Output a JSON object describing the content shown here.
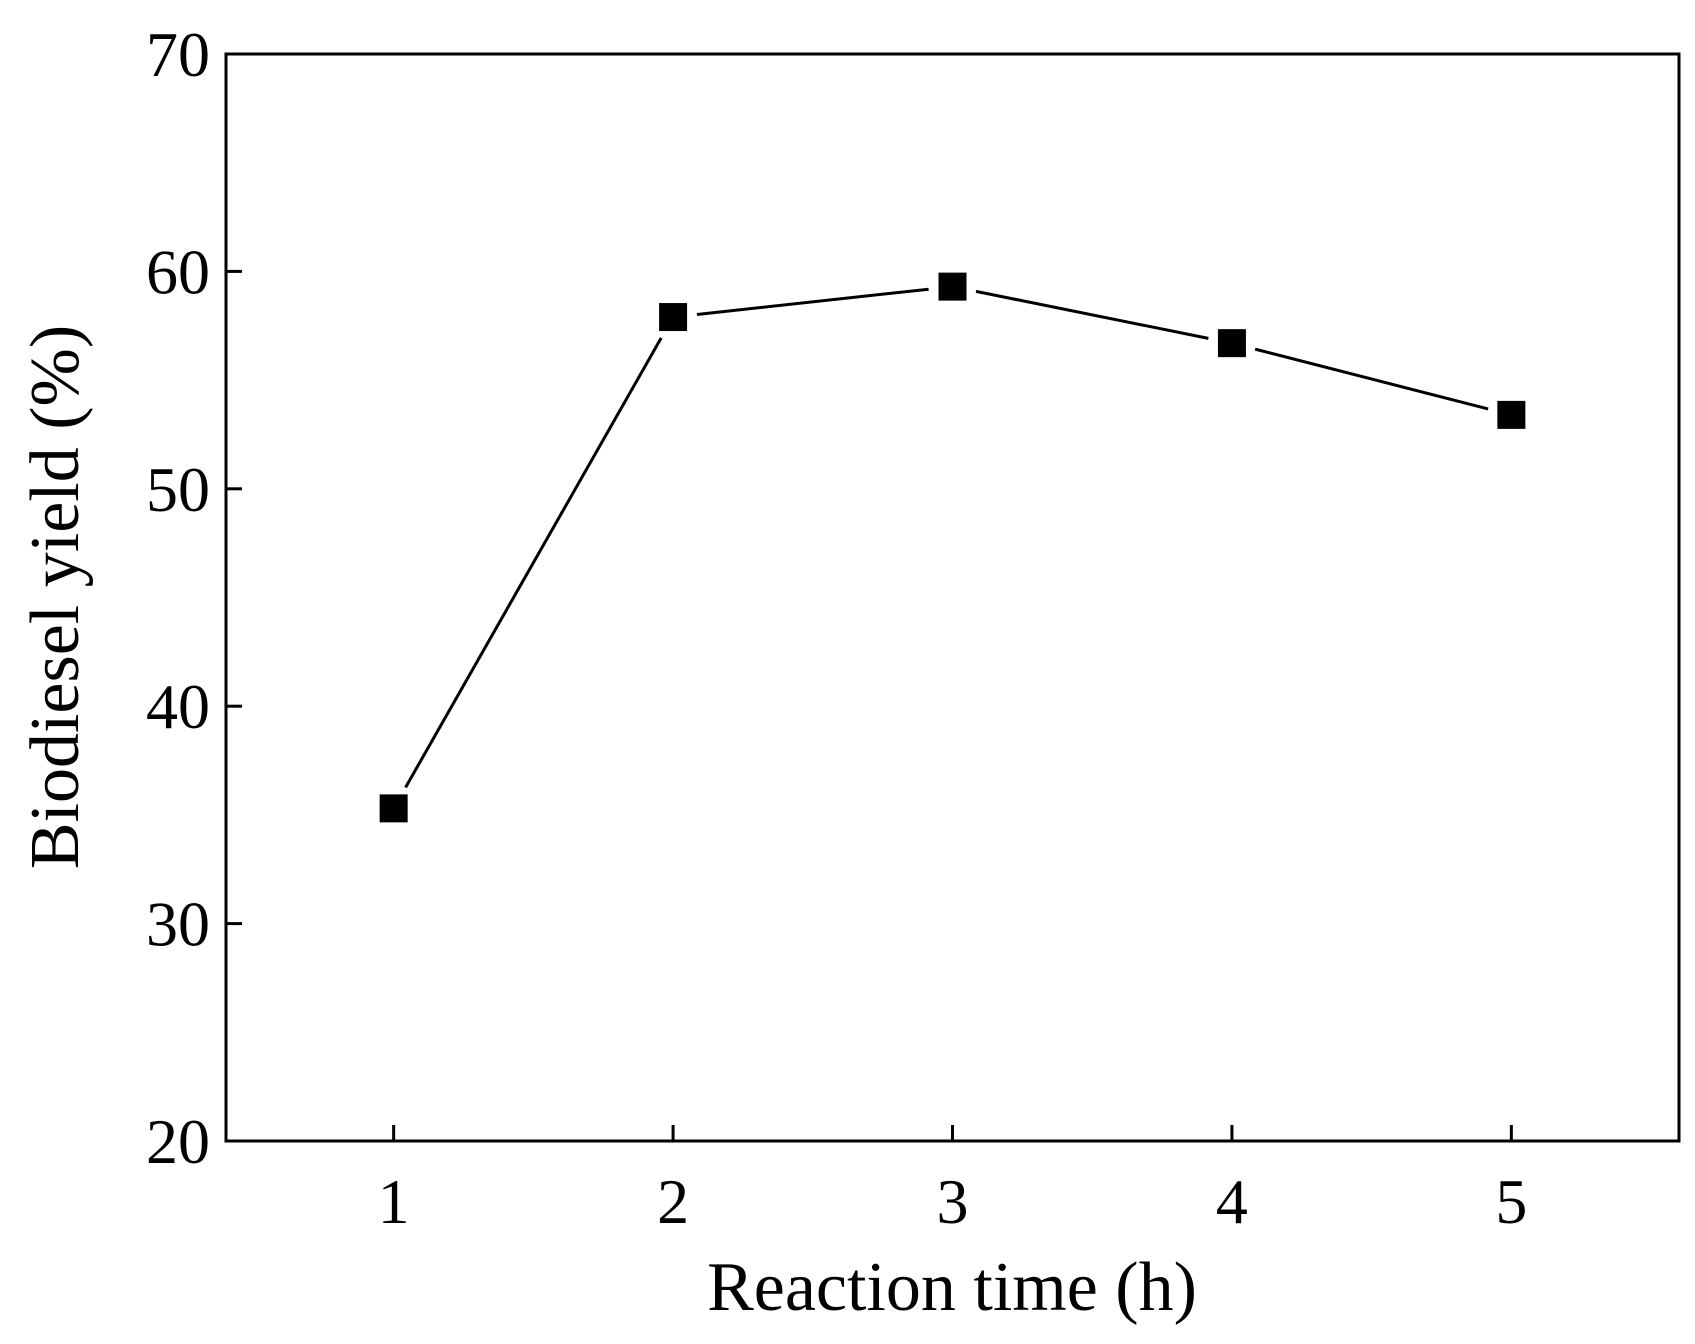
{
  "chart_data": {
    "type": "line",
    "title": "",
    "xlabel": "Reaction time (h)",
    "ylabel": "Biodiesel yield (%)",
    "x": [
      1,
      2,
      3,
      4,
      5
    ],
    "series": [
      {
        "name": "Biodiesel yield",
        "marker": "square",
        "color": "#000000",
        "values": [
          35.3,
          57.9,
          59.3,
          56.7,
          53.4
        ]
      }
    ],
    "xlim": [
      0.4,
      5.6
    ],
    "ylim": [
      20,
      70
    ],
    "xticks": [
      1,
      2,
      3,
      4,
      5
    ],
    "yticks": [
      20,
      30,
      40,
      50,
      60,
      70
    ],
    "xtick_labels": [
      "1",
      "2",
      "3",
      "4",
      "5"
    ],
    "ytick_labels": [
      "20",
      "30",
      "40",
      "50",
      "60",
      "70"
    ],
    "grid": false,
    "legend": "none"
  }
}
